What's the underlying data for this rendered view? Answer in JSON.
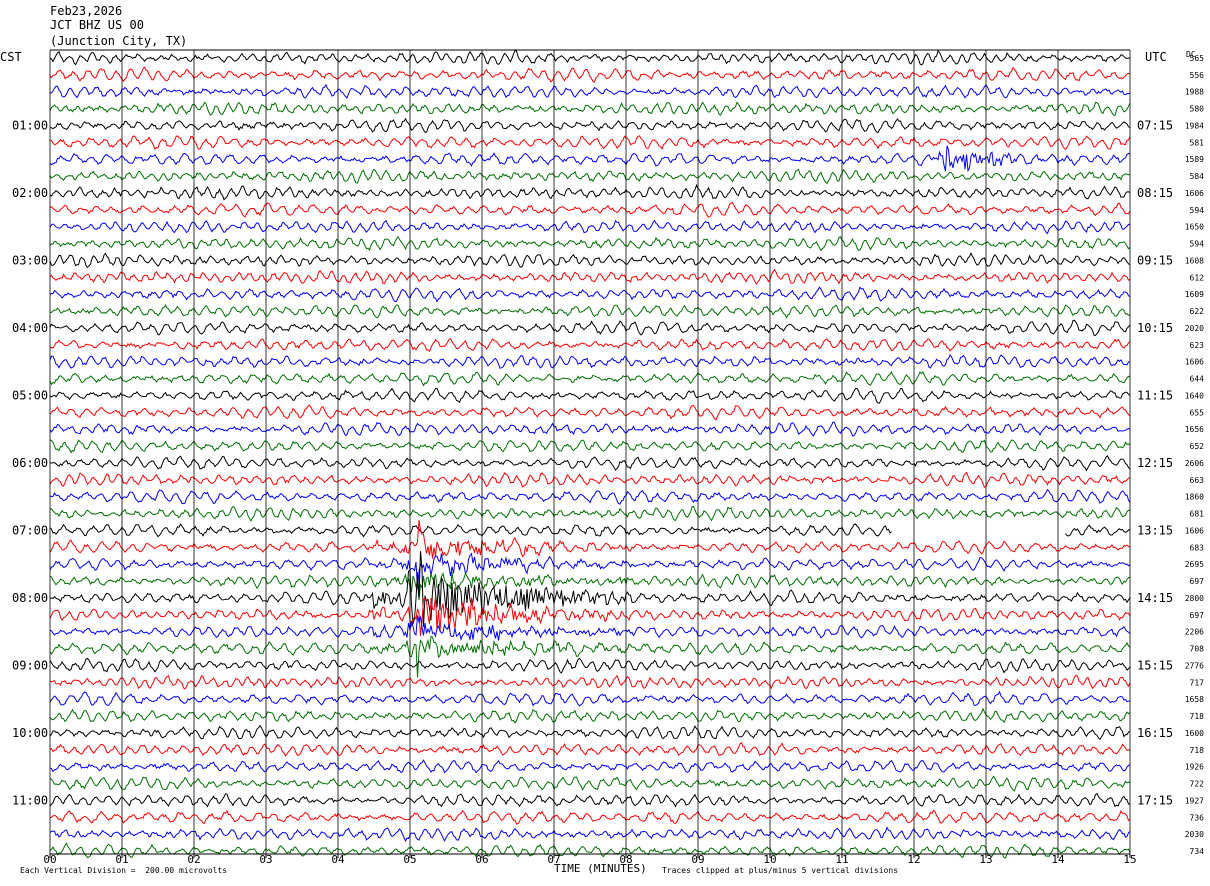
{
  "header": {
    "date": "Feb23,2026",
    "station": "JCT BHZ US 00",
    "location": "(Junction City, TX)"
  },
  "left_tz": "CST",
  "right_tz": "UTC",
  "dc_label": "DC",
  "footer": {
    "scale": "Each Vertical Division =  200.00 microvolts",
    "clip": "Traces clipped at plus/minus 5 vertical divisions"
  },
  "colors": {
    "trace_cycle": [
      "#000000",
      "#ff0000",
      "#0000ff",
      "#007000"
    ],
    "grid": "#000000"
  },
  "chart_data": {
    "type": "line",
    "title": "",
    "xlabel": "TIME (MINUTES)",
    "ylabel": "",
    "xlim": [
      0,
      15
    ],
    "x_ticks": [
      "00",
      "01",
      "02",
      "03",
      "04",
      "05",
      "06",
      "07",
      "08",
      "09",
      "10",
      "11",
      "12",
      "13",
      "14",
      "15"
    ],
    "left_hour_labels": [
      "01:00",
      "02:00",
      "03:00",
      "04:00",
      "05:00",
      "06:00",
      "07:00",
      "08:00",
      "09:00",
      "10:00",
      "11:00"
    ],
    "right_hour_labels": [
      "07:15",
      "08:15",
      "09:15",
      "10:15",
      "11:15",
      "12:15",
      "13:15",
      "14:15",
      "15:15",
      "16:15",
      "17:15"
    ],
    "row_count": 48,
    "row_dc_values": [
      "565",
      "556",
      "1988",
      "580",
      "1984",
      "581",
      "1589",
      "584",
      "1606",
      "594",
      "1650",
      "594",
      "1608",
      "612",
      "1609",
      "622",
      "2020",
      "623",
      "1606",
      "644",
      "1640",
      "655",
      "1656",
      "652",
      "2606",
      "663",
      "1860",
      "681",
      "1606",
      "683",
      "2695",
      "697",
      "2800",
      "697",
      "2206",
      "708",
      "2776",
      "717",
      "1658",
      "718",
      "1600",
      "718",
      "1926",
      "722",
      "1927",
      "736",
      "2030",
      "734"
    ],
    "events": [
      {
        "name": "earthquake",
        "rows": [
          29,
          30,
          31,
          32,
          33,
          34,
          35
        ],
        "start_min": 4.4,
        "end_min": 8.1
      },
      {
        "name": "local burst",
        "rows": [
          6
        ],
        "start_min": 12.2,
        "end_min": 14.3
      }
    ],
    "gap": {
      "row": 28,
      "start_min": 11.7,
      "end_min": 14.1
    },
    "clip_divisions": 5,
    "grid": true
  }
}
